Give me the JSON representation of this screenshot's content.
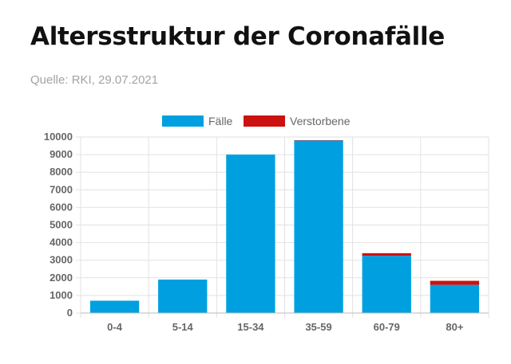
{
  "header": {
    "title": "Altersstruktur der Coronafälle",
    "source": "Quelle: RKI, 29.07.2021"
  },
  "colors": {
    "cases": "#00a0e0",
    "deaths": "#cc1111",
    "grid": "#e2e2e2",
    "axis": "#bbbbbb",
    "tick": "#666666"
  },
  "chart_data": {
    "type": "bar",
    "stacked": true,
    "categories": [
      "0-4",
      "5-14",
      "15-34",
      "35-59",
      "60-79",
      "80+"
    ],
    "series": [
      {
        "name": "Fälle",
        "color": "#00a0e0",
        "values": [
          700,
          1900,
          9000,
          9800,
          3250,
          1600
        ]
      },
      {
        "name": "Verstorbene",
        "color": "#cc1111",
        "values": [
          0,
          0,
          0,
          20,
          150,
          230
        ]
      }
    ],
    "xlabel": "",
    "ylabel": "",
    "ylim": [
      0,
      10000
    ],
    "yticks": [
      0,
      1000,
      2000,
      3000,
      4000,
      5000,
      6000,
      7000,
      8000,
      9000,
      10000
    ],
    "grid": true,
    "legend": "top-center"
  }
}
